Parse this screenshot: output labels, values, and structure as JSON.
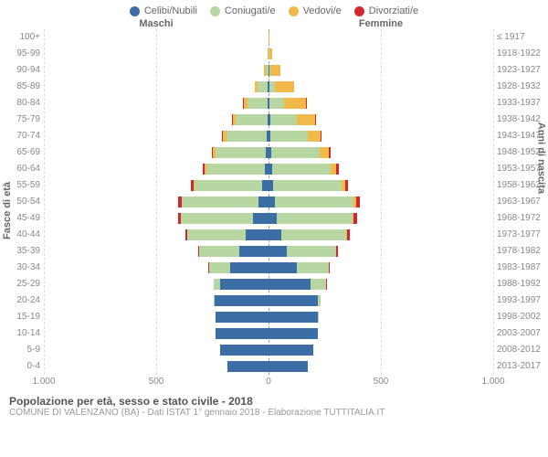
{
  "legend": {
    "items": [
      {
        "label": "Celibi/Nubili",
        "color": "#3a6ea5"
      },
      {
        "label": "Coniugati/e",
        "color": "#b7d6a1"
      },
      {
        "label": "Vedovi/e",
        "color": "#f0b94a"
      },
      {
        "label": "Divorziati/e",
        "color": "#d1272e"
      }
    ]
  },
  "headers": {
    "male": "Maschi",
    "female": "Femmine"
  },
  "axis": {
    "left_title": "Fasce di età",
    "right_title": "Anni di nascita",
    "xmax": 1000,
    "xticks": [
      1000,
      500,
      0,
      500,
      1000
    ]
  },
  "footer": {
    "title": "Popolazione per età, sesso e stato civile - 2018",
    "sub": "COMUNE DI VALENZANO (BA) - Dati ISTAT 1° gennaio 2018 - Elaborazione TUTTITALIA.IT"
  },
  "colors": {
    "single": "#3a6ea5",
    "married": "#b7d6a1",
    "widowed": "#f0b94a",
    "divorced": "#d1272e",
    "grid": "#ffffff"
  },
  "rows": [
    {
      "age": "100+",
      "birth": "≤ 1917",
      "m": {
        "s": 0,
        "c": 0,
        "w": 2,
        "d": 0
      },
      "f": {
        "s": 0,
        "c": 0,
        "w": 3,
        "d": 0
      }
    },
    {
      "age": "95-99",
      "birth": "1918-1922",
      "m": {
        "s": 0,
        "c": 3,
        "w": 6,
        "d": 0
      },
      "f": {
        "s": 3,
        "c": 2,
        "w": 30,
        "d": 0
      }
    },
    {
      "age": "90-94",
      "birth": "1923-1927",
      "m": {
        "s": 2,
        "c": 22,
        "w": 18,
        "d": 0
      },
      "f": {
        "s": 6,
        "c": 10,
        "w": 90,
        "d": 0
      }
    },
    {
      "age": "85-89",
      "birth": "1928-1932",
      "m": {
        "s": 5,
        "c": 90,
        "w": 30,
        "d": 0
      },
      "f": {
        "s": 10,
        "c": 45,
        "w": 170,
        "d": 0
      }
    },
    {
      "age": "80-84",
      "birth": "1933-1937",
      "m": {
        "s": 8,
        "c": 180,
        "w": 35,
        "d": 2
      },
      "f": {
        "s": 12,
        "c": 130,
        "w": 190,
        "d": 3
      }
    },
    {
      "age": "75-79",
      "birth": "1938-1942",
      "m": {
        "s": 10,
        "c": 280,
        "w": 30,
        "d": 5
      },
      "f": {
        "s": 15,
        "c": 240,
        "w": 160,
        "d": 6
      }
    },
    {
      "age": "70-74",
      "birth": "1943-1947",
      "m": {
        "s": 18,
        "c": 360,
        "w": 25,
        "d": 10
      },
      "f": {
        "s": 20,
        "c": 330,
        "w": 110,
        "d": 10
      }
    },
    {
      "age": "65-69",
      "birth": "1948-1952",
      "m": {
        "s": 25,
        "c": 450,
        "w": 18,
        "d": 15
      },
      "f": {
        "s": 25,
        "c": 430,
        "w": 80,
        "d": 15
      }
    },
    {
      "age": "60-64",
      "birth": "1953-1957",
      "m": {
        "s": 35,
        "c": 520,
        "w": 12,
        "d": 20
      },
      "f": {
        "s": 30,
        "c": 520,
        "w": 55,
        "d": 20
      }
    },
    {
      "age": "55-59",
      "birth": "1958-1962",
      "m": {
        "s": 55,
        "c": 600,
        "w": 8,
        "d": 25
      },
      "f": {
        "s": 40,
        "c": 610,
        "w": 35,
        "d": 25
      }
    },
    {
      "age": "50-54",
      "birth": "1963-1967",
      "m": {
        "s": 90,
        "c": 680,
        "w": 5,
        "d": 30
      },
      "f": {
        "s": 55,
        "c": 700,
        "w": 25,
        "d": 35
      }
    },
    {
      "age": "45-49",
      "birth": "1968-1972",
      "m": {
        "s": 140,
        "c": 640,
        "w": 3,
        "d": 25
      },
      "f": {
        "s": 75,
        "c": 670,
        "w": 15,
        "d": 30
      }
    },
    {
      "age": "40-44",
      "birth": "1973-1977",
      "m": {
        "s": 200,
        "c": 520,
        "w": 2,
        "d": 18
      },
      "f": {
        "s": 110,
        "c": 580,
        "w": 8,
        "d": 22
      }
    },
    {
      "age": "35-39",
      "birth": "1978-1982",
      "m": {
        "s": 260,
        "c": 360,
        "w": 0,
        "d": 10
      },
      "f": {
        "s": 160,
        "c": 440,
        "w": 3,
        "d": 12
      }
    },
    {
      "age": "30-34",
      "birth": "1983-1987",
      "m": {
        "s": 340,
        "c": 190,
        "w": 0,
        "d": 5
      },
      "f": {
        "s": 250,
        "c": 290,
        "w": 0,
        "d": 6
      }
    },
    {
      "age": "25-29",
      "birth": "1988-1992",
      "m": {
        "s": 430,
        "c": 60,
        "w": 0,
        "d": 2
      },
      "f": {
        "s": 370,
        "c": 140,
        "w": 0,
        "d": 2
      }
    },
    {
      "age": "20-24",
      "birth": "1993-1997",
      "m": {
        "s": 480,
        "c": 8,
        "w": 0,
        "d": 0
      },
      "f": {
        "s": 440,
        "c": 25,
        "w": 0,
        "d": 0
      }
    },
    {
      "age": "15-19",
      "birth": "1998-2002",
      "m": {
        "s": 470,
        "c": 0,
        "w": 0,
        "d": 0
      },
      "f": {
        "s": 440,
        "c": 2,
        "w": 0,
        "d": 0
      }
    },
    {
      "age": "10-14",
      "birth": "2003-2007",
      "m": {
        "s": 470,
        "c": 0,
        "w": 0,
        "d": 0
      },
      "f": {
        "s": 440,
        "c": 0,
        "w": 0,
        "d": 0
      }
    },
    {
      "age": "5-9",
      "birth": "2008-2012",
      "m": {
        "s": 430,
        "c": 0,
        "w": 0,
        "d": 0
      },
      "f": {
        "s": 400,
        "c": 0,
        "w": 0,
        "d": 0
      }
    },
    {
      "age": "0-4",
      "birth": "2013-2017",
      "m": {
        "s": 370,
        "c": 0,
        "w": 0,
        "d": 0
      },
      "f": {
        "s": 350,
        "c": 0,
        "w": 0,
        "d": 0
      }
    }
  ]
}
